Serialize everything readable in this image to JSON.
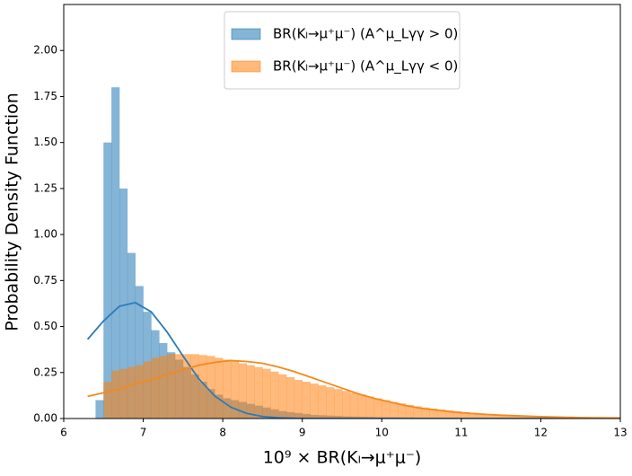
{
  "chart_data": {
    "type": "histogram",
    "xlabel": "10⁹ × BR(Kₗ→μ⁺μ⁻)",
    "ylabel": "Probability Density Function",
    "xlim": [
      6,
      13
    ],
    "ylim": [
      0,
      2.25
    ],
    "xticks": [
      6,
      7,
      8,
      9,
      10,
      11,
      12,
      13
    ],
    "yticks": [
      {
        "value": 0,
        "label": "0.00"
      },
      {
        "value": 0.25,
        "label": "0.25"
      },
      {
        "value": 0.5,
        "label": "0.50"
      },
      {
        "value": 0.75,
        "label": "0.75"
      },
      {
        "value": 1,
        "label": "1.00"
      },
      {
        "value": 1.25,
        "label": "1.25"
      },
      {
        "value": 1.5,
        "label": "1.50"
      },
      {
        "value": 1.75,
        "label": "1.75"
      },
      {
        "value": 2,
        "label": "2.00"
      }
    ],
    "legend": "upper center",
    "bins": [
      6.3,
      6.4,
      6.5,
      6.6,
      6.7,
      6.8,
      6.9,
      7.0,
      7.1,
      7.2,
      7.3,
      7.4,
      7.5,
      7.6,
      7.7,
      7.8,
      7.9,
      8.0,
      8.1,
      8.2,
      8.3,
      8.4,
      8.5,
      8.6,
      8.7,
      8.8,
      8.9,
      9.0,
      9.1,
      9.2,
      9.3,
      9.4,
      9.5,
      9.6,
      9.7,
      9.8,
      9.9,
      10.0,
      10.1,
      10.2,
      10.3,
      10.4,
      10.5,
      10.6,
      10.7,
      10.8,
      10.9,
      11.0,
      11.1,
      11.2,
      11.3,
      11.4,
      11.5,
      11.6,
      11.7,
      11.8,
      11.9,
      12.0,
      12.1,
      12.2,
      12.3,
      12.4,
      12.5,
      12.6,
      12.7,
      12.8,
      12.9,
      13.0
    ],
    "series": [
      {
        "type": "histogram",
        "name": "BR(Kₗ→μ⁺μ⁻) (A^μ_Lγγ > 0)",
        "color": "#1f77b4",
        "values": [
          0,
          0.1,
          1.5,
          1.8,
          1.25,
          0.9,
          0.72,
          0.58,
          0.48,
          0.41,
          0.36,
          0.32,
          0.28,
          0.24,
          0.2,
          0.16,
          0.13,
          0.11,
          0.1,
          0.09,
          0.08,
          0.07,
          0.06,
          0.05,
          0.04,
          0.035,
          0.03,
          0.025,
          0.02,
          0.018,
          0.016,
          0.014,
          0.012,
          0.011,
          0.01,
          0.009,
          0.008,
          0.007,
          0.007,
          0.006,
          0.006,
          0.005,
          0.005,
          0.005,
          0.004,
          0.004,
          0.004,
          0.003,
          0.003,
          0.003,
          0.003,
          0.003,
          0.003,
          0.003,
          0.003,
          0.003,
          0.003,
          0.002,
          0.002,
          0.002,
          0.002,
          0.002,
          0.001,
          0.001,
          0.001,
          0.001,
          0.001
        ]
      },
      {
        "type": "histogram",
        "name": "BR(Kₗ→μ⁺μ⁻) (A^μ_Lγγ < 0)",
        "color": "#ff7f0e",
        "values": [
          0,
          0,
          0.2,
          0.26,
          0.27,
          0.28,
          0.29,
          0.31,
          0.33,
          0.34,
          0.35,
          0.35,
          0.35,
          0.35,
          0.345,
          0.34,
          0.33,
          0.32,
          0.31,
          0.3,
          0.29,
          0.28,
          0.27,
          0.255,
          0.24,
          0.225,
          0.21,
          0.2,
          0.19,
          0.18,
          0.17,
          0.16,
          0.15,
          0.14,
          0.13,
          0.12,
          0.11,
          0.1,
          0.09,
          0.082,
          0.074,
          0.066,
          0.06,
          0.054,
          0.049,
          0.044,
          0.039,
          0.035,
          0.031,
          0.028,
          0.025,
          0.022,
          0.02,
          0.018,
          0.016,
          0.014,
          0.013,
          0.012,
          0.011,
          0.009,
          0.008,
          0.007,
          0.006,
          0.005,
          0.005,
          0.004,
          0.003
        ]
      },
      {
        "type": "line",
        "color": "#2b7bba",
        "x": [
          6.3,
          6.5,
          6.7,
          6.9,
          7.1,
          7.3,
          7.5,
          7.7,
          7.9,
          8.1,
          8.3,
          8.5,
          8.7,
          8.9,
          9.1,
          9.5,
          10,
          11,
          12,
          13
        ],
        "values": [
          0.43,
          0.53,
          0.61,
          0.63,
          0.58,
          0.47,
          0.34,
          0.215,
          0.122,
          0.062,
          0.028,
          0.011,
          0.004,
          0.001,
          0,
          0,
          0,
          0,
          0,
          0
        ]
      },
      {
        "type": "line",
        "color": "#f28a1e",
        "x": [
          6.3,
          6.5,
          6.7,
          6.9,
          7.1,
          7.3,
          7.5,
          7.7,
          7.9,
          8.1,
          8.3,
          8.5,
          8.7,
          8.9,
          9.1,
          9.3,
          9.5,
          9.7,
          9.9,
          10.1,
          10.3,
          10.5,
          10.7,
          10.9,
          11.2,
          11.5,
          12,
          12.5,
          13
        ],
        "values": [
          0.12,
          0.14,
          0.16,
          0.19,
          0.21,
          0.24,
          0.265,
          0.29,
          0.305,
          0.315,
          0.31,
          0.3,
          0.28,
          0.255,
          0.225,
          0.195,
          0.165,
          0.135,
          0.11,
          0.09,
          0.07,
          0.055,
          0.045,
          0.035,
          0.025,
          0.018,
          0.01,
          0.005,
          0.003
        ]
      }
    ]
  }
}
